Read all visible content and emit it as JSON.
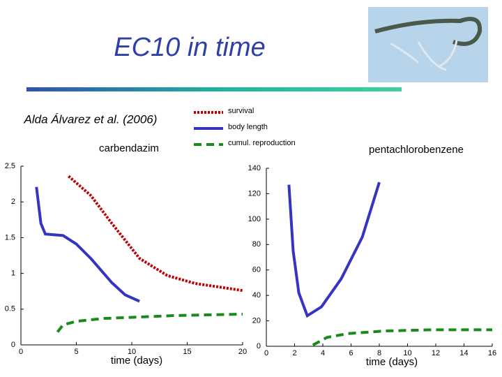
{
  "header": {
    "title": "EC10 in time",
    "subtitle": "Alda Álvarez et al. (2006)"
  },
  "chart_data": [
    {
      "type": "line",
      "title": "carbendazim",
      "xlabel": "time (days)",
      "xlim": [
        0,
        20
      ],
      "xticks": [
        0,
        5,
        10,
        15,
        20
      ],
      "ylim": [
        0,
        2.5
      ],
      "yticks": [
        0,
        0.5,
        1,
        1.5,
        2,
        2.5
      ],
      "series": [
        {
          "name": "survival",
          "color": "#c00000",
          "style": "dotted",
          "x": [
            4.3,
            6.3,
            8.2,
            10.7,
            13.2,
            15.7,
            20
          ],
          "values": [
            2.36,
            2.09,
            1.7,
            1.21,
            0.97,
            0.86,
            0.76
          ]
        },
        {
          "name": "body length",
          "color": "#3535c0",
          "style": "solid",
          "x": [
            1.4,
            1.8,
            2.2,
            3.8,
            5.0,
            6.3,
            8.2,
            9.4,
            10.7
          ],
          "values": [
            2.21,
            1.7,
            1.55,
            1.53,
            1.41,
            1.21,
            0.87,
            0.7,
            0.61
          ]
        },
        {
          "name": "cumul. reproduction",
          "color": "#1a8a1a",
          "style": "dashed",
          "x": [
            3.3,
            3.8,
            5.0,
            7.5,
            10.7,
            13.8,
            20
          ],
          "values": [
            0.18,
            0.28,
            0.33,
            0.37,
            0.39,
            0.41,
            0.43
          ]
        }
      ]
    },
    {
      "type": "line",
      "title": "pentachlorobenzene",
      "xlabel": "time (days)",
      "xlim": [
        0,
        16
      ],
      "xticks": [
        0,
        2,
        4,
        6,
        8,
        10,
        12,
        14,
        16
      ],
      "ylim": [
        0,
        140
      ],
      "yticks": [
        0,
        20,
        40,
        60,
        80,
        100,
        120,
        140
      ],
      "series": [
        {
          "name": "body length",
          "color": "#3535c0",
          "style": "solid",
          "x": [
            1.6,
            1.9,
            2.3,
            2.9,
            3.9,
            5.3,
            6.8,
            8.0
          ],
          "values": [
            127,
            75,
            42,
            24,
            31,
            53,
            86,
            129
          ]
        },
        {
          "name": "cumul. reproduction",
          "color": "#1a8a1a",
          "style": "dashed",
          "x": [
            3.3,
            4.3,
            5.8,
            8.3,
            11.8,
            16
          ],
          "values": [
            1,
            7,
            10,
            12,
            13,
            13
          ]
        }
      ]
    }
  ]
}
